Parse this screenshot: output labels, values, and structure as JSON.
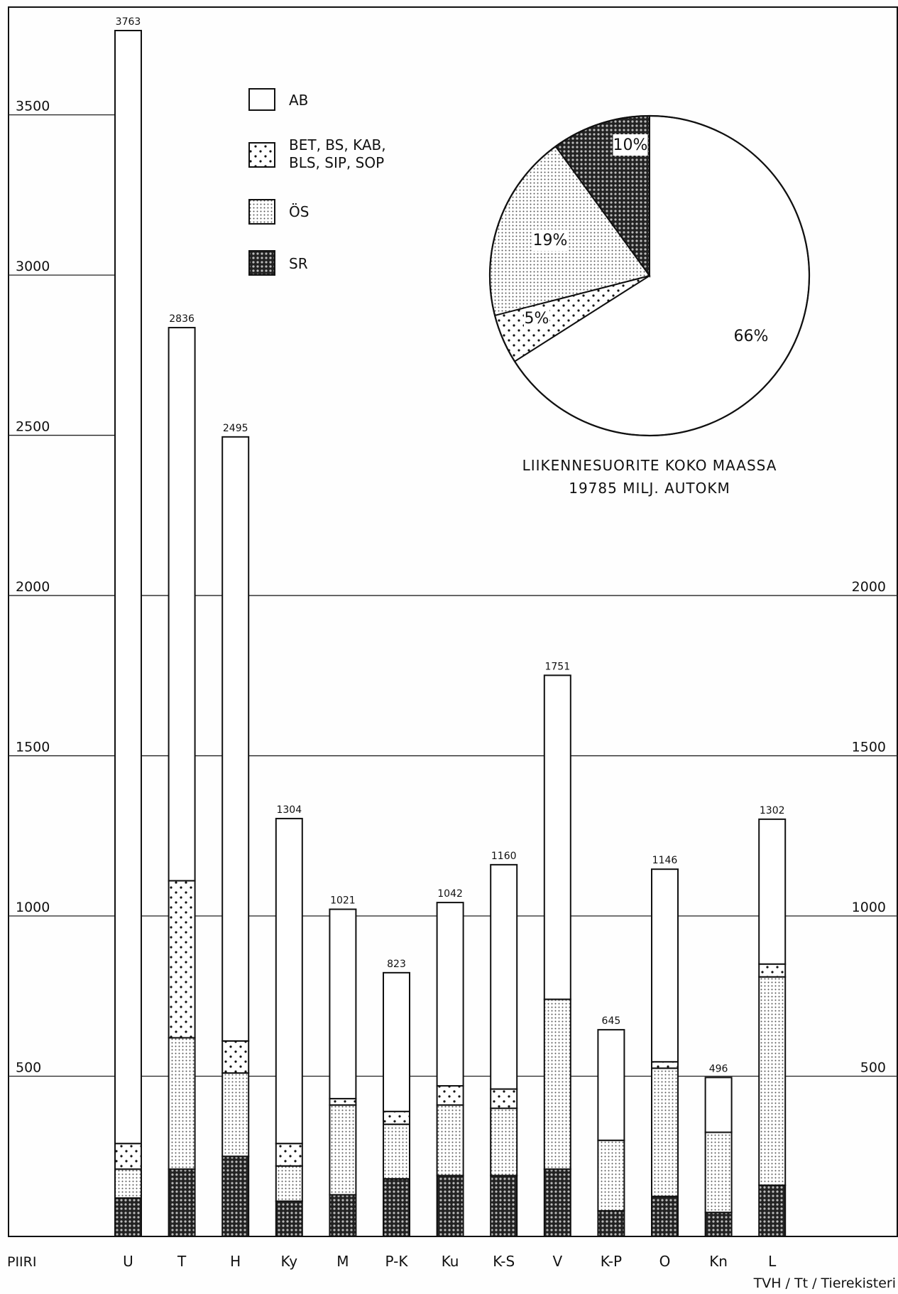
{
  "chart_data": {
    "type": "bar",
    "stacked": true,
    "x_axis_label": "PIIRI",
    "categories": [
      "U",
      "T",
      "H",
      "Ky",
      "M",
      "P-K",
      "Ku",
      "K-S",
      "V",
      "K-P",
      "O",
      "Kn",
      "L"
    ],
    "totals": [
      3763,
      2836,
      2495,
      1304,
      1021,
      823,
      1042,
      1160,
      1751,
      645,
      1146,
      496,
      1302
    ],
    "series": [
      {
        "name": "SR",
        "pattern": "dense-dark",
        "values": [
          120,
          210,
          250,
          110,
          130,
          180,
          190,
          190,
          210,
          80,
          125,
          75,
          160
        ]
      },
      {
        "name": "ÖS",
        "pattern": "light-dots",
        "values": [
          90,
          410,
          260,
          110,
          280,
          170,
          220,
          210,
          530,
          220,
          400,
          250,
          650
        ]
      },
      {
        "name": "BET, BS, KAB, BLS, SIP, SOP",
        "pattern": "sparse-dots",
        "values": [
          80,
          490,
          100,
          70,
          20,
          40,
          60,
          60,
          0,
          0,
          20,
          0,
          40
        ]
      },
      {
        "name": "AB",
        "pattern": "white",
        "values": [
          3473,
          1726,
          1885,
          1014,
          591,
          433,
          572,
          700,
          1011,
          345,
          601,
          171,
          452
        ]
      }
    ],
    "y_axis": {
      "min": 0,
      "max": 3763,
      "left_ticks": [
        500,
        1000,
        1500,
        2000,
        2500,
        3000,
        3500
      ],
      "right_ticks": [
        500,
        1000,
        1500,
        2000
      ],
      "gridlines": true
    },
    "legend": {
      "placement": "top-left",
      "entries": [
        {
          "label": "AB",
          "pattern": "white"
        },
        {
          "label": "BET, BS, KAB,\nBLS, SIP, SOP",
          "pattern": "sparse-dots"
        },
        {
          "label": "ÖS",
          "pattern": "light-dots"
        },
        {
          "label": "SR",
          "pattern": "dense-dark"
        }
      ]
    },
    "pie": {
      "placement": "top-right",
      "title_line1": "LIIKENNESUORITE KOKO MAASSA",
      "title_line2": "19785 MILJ. AUTOKM",
      "slices": [
        {
          "name": "AB",
          "percent": 66,
          "label": "66%",
          "pattern": "white"
        },
        {
          "name": "BET, BS, KAB, BLS, SIP, SOP",
          "percent": 5,
          "label": "5%",
          "pattern": "sparse-dots"
        },
        {
          "name": "ÖS",
          "percent": 19,
          "label": "19%",
          "pattern": "light-dots"
        },
        {
          "name": "SR",
          "percent": 10,
          "label": "10%",
          "pattern": "dense-dark"
        }
      ]
    },
    "credit": "TVH / Tt / Tierekisteri"
  }
}
